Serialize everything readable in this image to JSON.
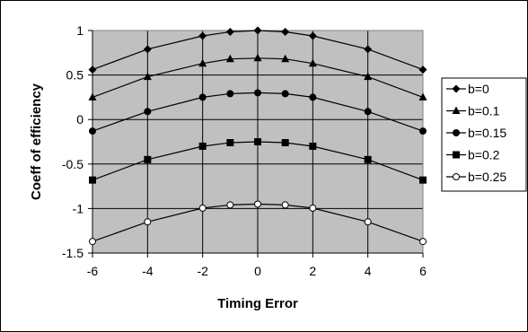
{
  "chart_data": {
    "type": "line",
    "title": "",
    "xlabel": "Timing Error",
    "ylabel": "Coeff of efficiency",
    "x": [
      -6,
      -4,
      -2,
      -1,
      0,
      1,
      2,
      4,
      6
    ],
    "xticks": [
      -6,
      -4,
      -2,
      0,
      2,
      4,
      6
    ],
    "yticks": [
      -1.5,
      -1,
      -0.5,
      0,
      0.5,
      1
    ],
    "xlim": [
      -6,
      6
    ],
    "ylim": [
      -1.5,
      1
    ],
    "grid": true,
    "legend_position": "right",
    "plot_background": "#c0c0c0",
    "line_color": "#000000",
    "series": [
      {
        "name": "b=0",
        "marker": "diamond",
        "values": [
          0.56,
          0.79,
          0.94,
          0.985,
          1.0,
          0.985,
          0.94,
          0.79,
          0.56
        ]
      },
      {
        "name": "b=0.1",
        "marker": "triangle",
        "values": [
          0.25,
          0.48,
          0.63,
          0.68,
          0.69,
          0.68,
          0.63,
          0.48,
          0.25
        ]
      },
      {
        "name": "b=0.15",
        "marker": "circle",
        "values": [
          -0.13,
          0.09,
          0.25,
          0.29,
          0.3,
          0.29,
          0.25,
          0.09,
          -0.13
        ]
      },
      {
        "name": "b=0.2",
        "marker": "square",
        "values": [
          -0.68,
          -0.45,
          -0.3,
          -0.26,
          -0.25,
          -0.26,
          -0.3,
          -0.45,
          -0.68
        ]
      },
      {
        "name": "b=0.25",
        "marker": "open-circle",
        "values": [
          -1.37,
          -1.15,
          -0.995,
          -0.96,
          -0.95,
          -0.96,
          -0.995,
          -1.15,
          -1.37
        ]
      }
    ]
  }
}
